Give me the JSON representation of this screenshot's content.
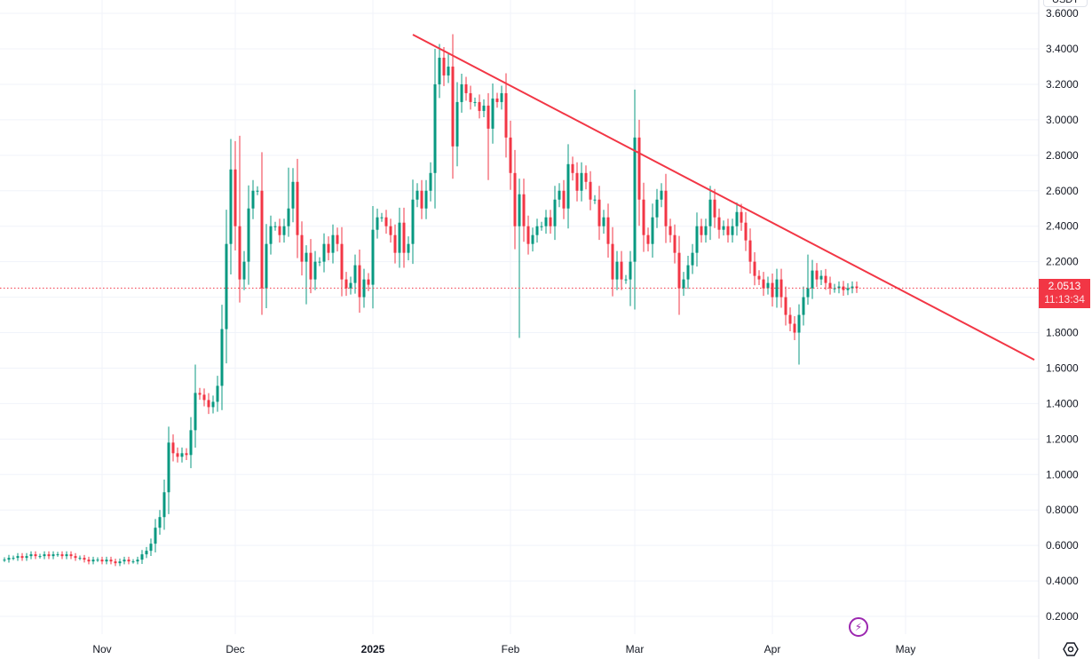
{
  "chart_data": {
    "type": "candlestick",
    "symbol_unit": "USDT",
    "start_date": "2024-10-10",
    "interval": "1D",
    "close": [
      0.52,
      0.53,
      0.53,
      0.54,
      0.53,
      0.54,
      0.55,
      0.54,
      0.54,
      0.55,
      0.54,
      0.55,
      0.55,
      0.54,
      0.55,
      0.54,
      0.53,
      0.53,
      0.52,
      0.51,
      0.52,
      0.52,
      0.51,
      0.52,
      0.51,
      0.5,
      0.51,
      0.52,
      0.51,
      0.51,
      0.52,
      0.55,
      0.57,
      0.61,
      0.7,
      0.76,
      0.9,
      1.18,
      1.12,
      1.1,
      1.12,
      1.11,
      1.25,
      1.46,
      1.45,
      1.42,
      1.38,
      1.41,
      1.5,
      1.82,
      2.3,
      2.72,
      2.4,
      2.1,
      2.2,
      2.5,
      2.6,
      2.6,
      2.05,
      2.3,
      2.4,
      2.4,
      2.35,
      2.4,
      2.5,
      2.65,
      2.35,
      2.2,
      2.25,
      2.1,
      2.2,
      2.2,
      2.3,
      2.25,
      2.35,
      2.3,
      2.1,
      2.05,
      2.08,
      2.18,
      2.0,
      2.1,
      2.07,
      2.38,
      2.45,
      2.45,
      2.4,
      2.35,
      2.25,
      2.42,
      2.25,
      2.3,
      2.55,
      2.6,
      2.5,
      2.6,
      2.7,
      3.2,
      3.35,
      3.25,
      3.3,
      2.85,
      3.1,
      3.2,
      3.15,
      3.1,
      3.1,
      3.05,
      3.08,
      2.95,
      3.12,
      3.1,
      3.15,
      2.9,
      2.7,
      2.4,
      2.58,
      2.4,
      2.3,
      2.35,
      2.4,
      2.4,
      2.45,
      2.4,
      2.55,
      2.6,
      2.5,
      2.75,
      2.7,
      2.6,
      2.7,
      2.65,
      2.55,
      2.55,
      2.4,
      2.45,
      2.3,
      2.1,
      2.2,
      2.1,
      2.1,
      2.2,
      2.9,
      2.55,
      2.35,
      2.3,
      2.45,
      2.55,
      2.6,
      2.4,
      2.35,
      2.25,
      2.05,
      2.1,
      2.18,
      2.25,
      2.4,
      2.35,
      2.4,
      2.55,
      2.45,
      2.38,
      2.4,
      2.35,
      2.4,
      2.48,
      2.42,
      2.32,
      2.2,
      2.12,
      2.1,
      2.05,
      2.08,
      2.0,
      2.1,
      2.0,
      1.9,
      1.85,
      1.8,
      1.9,
      2.0,
      2.05,
      2.15,
      2.1,
      2.12,
      2.08,
      2.05,
      2.05,
      2.06,
      2.04,
      2.05,
      2.06,
      2.0513
    ],
    "extreme_wicks": [
      {
        "date": "2024-11-16",
        "high": 1.27
      },
      {
        "date": "2024-11-22",
        "high": 1.62
      },
      {
        "date": "2024-12-01",
        "high": 2.88
      },
      {
        "date": "2024-12-02",
        "high": 2.91
      },
      {
        "date": "2024-12-07",
        "low": 1.9
      },
      {
        "date": "2024-12-13",
        "high": 2.73
      },
      {
        "date": "2024-12-17",
        "low": 1.96
      },
      {
        "date": "2025-01-15",
        "high": 3.4
      },
      {
        "date": "2025-01-18",
        "high": 3.38
      },
      {
        "date": "2025-01-27",
        "low": 2.66
      },
      {
        "date": "2025-02-03",
        "low": 1.77
      },
      {
        "date": "2025-02-28",
        "low": 1.95
      },
      {
        "date": "2025-03-02",
        "high": 3.0
      },
      {
        "date": "2025-03-11",
        "low": 1.9
      },
      {
        "date": "2025-04-07",
        "low": 1.62
      },
      {
        "date": "2025-04-09",
        "high": 2.24
      }
    ],
    "colors": {
      "up": "#089981",
      "down": "#f23645",
      "trendline": "#f23645",
      "grid": "#f0f3fa"
    },
    "trendline": [
      {
        "date": "2025-01-10",
        "price": 3.48
      },
      {
        "date": "2025-05-30",
        "price": 1.647
      }
    ],
    "ylim": [
      0.1,
      3.62
    ],
    "y_ticks": [
      "3.6000",
      "3.4000",
      "3.2000",
      "3.0000",
      "2.8000",
      "2.6000",
      "2.4000",
      "2.2000",
      "2.0000",
      "1.8000",
      "1.6000",
      "1.4000",
      "1.2000",
      "1.0000",
      "0.8000",
      "0.6000",
      "0.4000",
      "0.2000"
    ],
    "x_ticks": [
      {
        "date": "2024-11-01",
        "label": "Nov"
      },
      {
        "date": "2024-12-01",
        "label": "Dec"
      },
      {
        "date": "2025-01-01",
        "label": "2025"
      },
      {
        "date": "2025-02-01",
        "label": "Feb"
      },
      {
        "date": "2025-03-01",
        "label": "Mar"
      },
      {
        "date": "2025-04-01",
        "label": "Apr"
      },
      {
        "date": "2025-05-01",
        "label": "May"
      }
    ],
    "last_price": "2.0513",
    "countdown": "11:13:34"
  }
}
